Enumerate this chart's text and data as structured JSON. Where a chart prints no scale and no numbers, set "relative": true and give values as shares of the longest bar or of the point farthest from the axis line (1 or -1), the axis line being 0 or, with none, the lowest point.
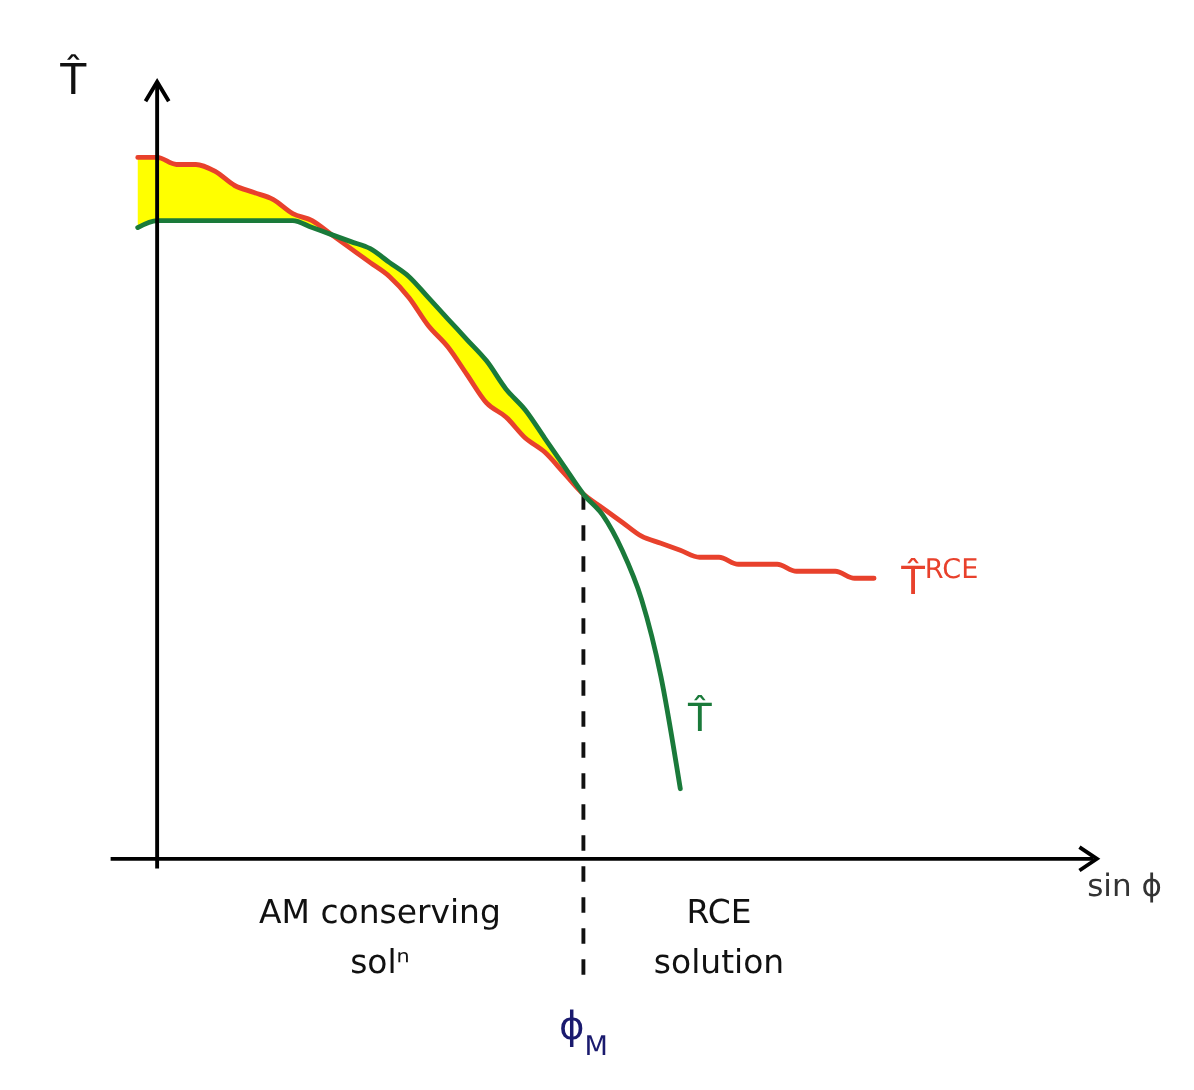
{
  "chart_data": {
    "type": "line",
    "relative": true,
    "ylabel": "T̂",
    "legend": false,
    "marker": "none",
    "categories": [
      null,
      null,
      null,
      null,
      null,
      null,
      null,
      null,
      null,
      null,
      null,
      null,
      null,
      null,
      null,
      null,
      null,
      null,
      null,
      null,
      null,
      null,
      null,
      null,
      null,
      null,
      null,
      null,
      null,
      null,
      null,
      null,
      null,
      null,
      null,
      null,
      null,
      null,
      null
    ],
    "series": [
      {
        "name": "T̂$^{RCE}$",
        "color": "#e8412c",
        "values": [
          1.0,
          1.0,
          0.99,
          0.99,
          0.98,
          0.96,
          0.95,
          0.94,
          0.92,
          0.91,
          0.89,
          0.87,
          0.85,
          0.83,
          0.8,
          0.76,
          0.73,
          0.69,
          0.65,
          0.63,
          0.6,
          0.58,
          0.55,
          0.52,
          0.5,
          0.48,
          0.46,
          0.45,
          0.44,
          0.43,
          0.43,
          0.42,
          0.42,
          0.42,
          0.41,
          0.41,
          0.41,
          0.4,
          0.4
        ]
      },
      {
        "name": "T̂",
        "color": "#1a7a3a",
        "values": [
          0.9,
          0.91,
          0.91,
          0.91,
          0.91,
          0.91,
          0.91,
          0.91,
          0.91,
          0.9,
          0.89,
          0.88,
          0.87,
          0.85,
          0.83,
          0.8,
          0.77,
          0.74,
          0.71,
          0.67,
          0.64,
          0.6,
          0.56,
          0.52,
          0.49,
          0.44,
          0.37,
          0.26,
          0.1,
          null,
          null,
          null,
          null,
          null,
          null,
          null,
          null,
          null,
          null
        ]
      }
    ],
    "annotations": [
      "AM conserving solⁿ",
      "RCE solution",
      "ϕ$_{M}$",
      "sin ϕ"
    ]
  }
}
